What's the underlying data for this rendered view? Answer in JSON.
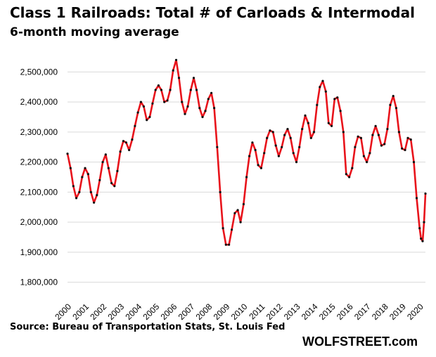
{
  "chart_data": {
    "type": "line",
    "title": "Class 1 Railroads: Total # of Carloads & Intermodal",
    "subtitle": "6-month moving average",
    "xlabel": "",
    "ylabel": "",
    "source": "Source: Bureau of Transportation Stats, St. Louis Fed",
    "ylim": [
      1750000,
      2550000
    ],
    "xlim": [
      2000,
      2020.33
    ],
    "y_ticks": [
      1800000,
      1900000,
      2000000,
      2100000,
      2200000,
      2300000,
      2400000,
      2500000
    ],
    "y_tick_labels": [
      "1,800,000",
      "1,900,000",
      "2,000,000",
      "2,100,000",
      "2,200,000",
      "2,300,000",
      "2,400,000",
      "2,500,000"
    ],
    "x_tick_labels": [
      "2000",
      "2001",
      "2002",
      "2003",
      "2004",
      "2005",
      "2006",
      "2007",
      "2008",
      "2009",
      "2010",
      "2011",
      "2012",
      "2013",
      "2014",
      "2015",
      "2016",
      "2017",
      "2018",
      "2019",
      "2020"
    ],
    "grid": true,
    "legend": "none",
    "series": [
      {
        "color": "#e8131b",
        "marker_color": "#111111",
        "points": [
          [
            2000.0,
            2228000
          ],
          [
            2000.17,
            2180000
          ],
          [
            2000.33,
            2120000
          ],
          [
            2000.5,
            2080000
          ],
          [
            2000.67,
            2100000
          ],
          [
            2000.83,
            2150000
          ],
          [
            2001.0,
            2180000
          ],
          [
            2001.17,
            2160000
          ],
          [
            2001.33,
            2100000
          ],
          [
            2001.5,
            2065000
          ],
          [
            2001.67,
            2090000
          ],
          [
            2001.83,
            2140000
          ],
          [
            2002.0,
            2200000
          ],
          [
            2002.17,
            2225000
          ],
          [
            2002.33,
            2180000
          ],
          [
            2002.5,
            2130000
          ],
          [
            2002.67,
            2120000
          ],
          [
            2002.83,
            2170000
          ],
          [
            2003.0,
            2235000
          ],
          [
            2003.17,
            2270000
          ],
          [
            2003.33,
            2265000
          ],
          [
            2003.5,
            2240000
          ],
          [
            2003.67,
            2275000
          ],
          [
            2003.83,
            2320000
          ],
          [
            2004.0,
            2365000
          ],
          [
            2004.17,
            2400000
          ],
          [
            2004.33,
            2385000
          ],
          [
            2004.5,
            2340000
          ],
          [
            2004.67,
            2350000
          ],
          [
            2004.83,
            2395000
          ],
          [
            2005.0,
            2440000
          ],
          [
            2005.17,
            2455000
          ],
          [
            2005.33,
            2440000
          ],
          [
            2005.5,
            2400000
          ],
          [
            2005.67,
            2405000
          ],
          [
            2005.83,
            2440000
          ],
          [
            2006.0,
            2505000
          ],
          [
            2006.17,
            2540000
          ],
          [
            2006.33,
            2480000
          ],
          [
            2006.5,
            2400000
          ],
          [
            2006.67,
            2360000
          ],
          [
            2006.83,
            2385000
          ],
          [
            2007.0,
            2440000
          ],
          [
            2007.17,
            2480000
          ],
          [
            2007.33,
            2440000
          ],
          [
            2007.5,
            2380000
          ],
          [
            2007.67,
            2350000
          ],
          [
            2007.83,
            2370000
          ],
          [
            2008.0,
            2410000
          ],
          [
            2008.17,
            2430000
          ],
          [
            2008.33,
            2380000
          ],
          [
            2008.5,
            2250000
          ],
          [
            2008.67,
            2100000
          ],
          [
            2008.83,
            1980000
          ],
          [
            2009.0,
            1925000
          ],
          [
            2009.17,
            1925000
          ],
          [
            2009.33,
            1975000
          ],
          [
            2009.5,
            2030000
          ],
          [
            2009.67,
            2040000
          ],
          [
            2009.83,
            2000000
          ],
          [
            2010.0,
            2060000
          ],
          [
            2010.17,
            2150000
          ],
          [
            2010.33,
            2220000
          ],
          [
            2010.5,
            2265000
          ],
          [
            2010.67,
            2240000
          ],
          [
            2010.83,
            2190000
          ],
          [
            2011.0,
            2180000
          ],
          [
            2011.17,
            2230000
          ],
          [
            2011.33,
            2280000
          ],
          [
            2011.5,
            2305000
          ],
          [
            2011.67,
            2300000
          ],
          [
            2011.83,
            2255000
          ],
          [
            2012.0,
            2220000
          ],
          [
            2012.17,
            2250000
          ],
          [
            2012.33,
            2290000
          ],
          [
            2012.5,
            2310000
          ],
          [
            2012.67,
            2280000
          ],
          [
            2012.83,
            2230000
          ],
          [
            2013.0,
            2200000
          ],
          [
            2013.17,
            2250000
          ],
          [
            2013.33,
            2310000
          ],
          [
            2013.5,
            2355000
          ],
          [
            2013.67,
            2330000
          ],
          [
            2013.83,
            2280000
          ],
          [
            2014.0,
            2300000
          ],
          [
            2014.17,
            2390000
          ],
          [
            2014.33,
            2450000
          ],
          [
            2014.5,
            2470000
          ],
          [
            2014.67,
            2435000
          ],
          [
            2014.83,
            2330000
          ],
          [
            2015.0,
            2320000
          ],
          [
            2015.17,
            2410000
          ],
          [
            2015.33,
            2415000
          ],
          [
            2015.5,
            2370000
          ],
          [
            2015.67,
            2300000
          ],
          [
            2015.83,
            2160000
          ],
          [
            2016.0,
            2150000
          ],
          [
            2016.17,
            2180000
          ],
          [
            2016.33,
            2250000
          ],
          [
            2016.5,
            2285000
          ],
          [
            2016.67,
            2280000
          ],
          [
            2016.83,
            2220000
          ],
          [
            2017.0,
            2200000
          ],
          [
            2017.17,
            2230000
          ],
          [
            2017.33,
            2290000
          ],
          [
            2017.5,
            2320000
          ],
          [
            2017.67,
            2290000
          ],
          [
            2017.83,
            2255000
          ],
          [
            2018.0,
            2260000
          ],
          [
            2018.17,
            2310000
          ],
          [
            2018.33,
            2390000
          ],
          [
            2018.5,
            2420000
          ],
          [
            2018.67,
            2380000
          ],
          [
            2018.83,
            2300000
          ],
          [
            2019.0,
            2245000
          ],
          [
            2019.17,
            2240000
          ],
          [
            2019.33,
            2280000
          ],
          [
            2019.5,
            2275000
          ],
          [
            2019.67,
            2200000
          ],
          [
            2019.83,
            2080000
          ],
          [
            2020.0,
            1980000
          ],
          [
            2020.08,
            1945000
          ],
          [
            2020.17,
            1937000
          ],
          [
            2020.25,
            2000000
          ],
          [
            2020.33,
            2095000
          ]
        ]
      }
    ]
  },
  "footer": {
    "brand": "WOLFSTREET.com"
  }
}
